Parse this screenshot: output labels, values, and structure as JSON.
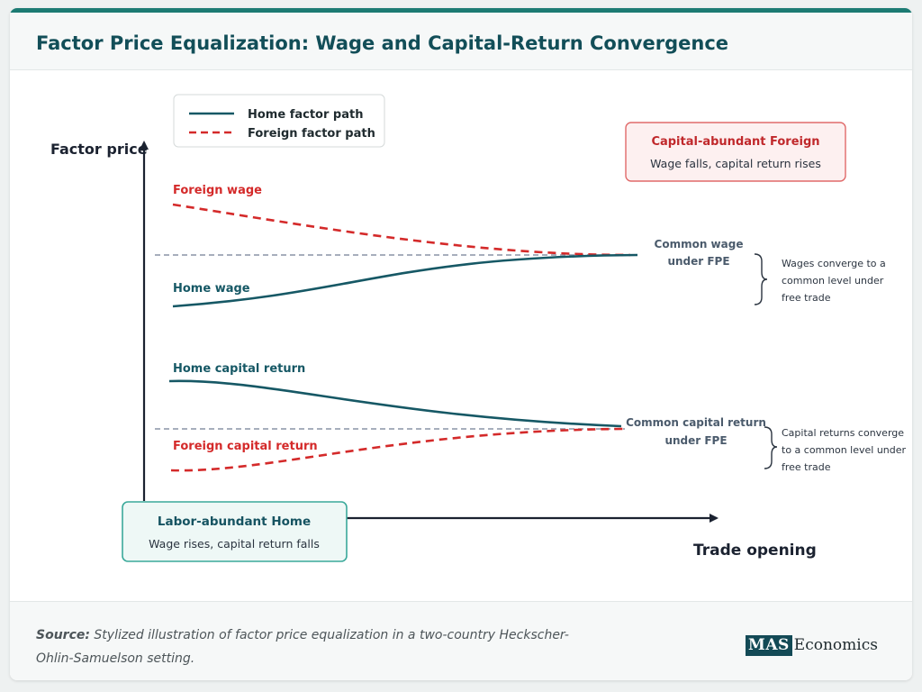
{
  "title": "Factor Price Equalization: Wage and Capital-Return Convergence",
  "legend": {
    "home": "Home factor path",
    "foreign": "Foreign factor path"
  },
  "axes": {
    "y_label": "Factor price",
    "x_label": "Trade opening"
  },
  "curves": {
    "foreign_wage": "Foreign wage",
    "home_wage": "Home wage",
    "home_capital": "Home capital return",
    "foreign_capital": "Foreign capital return"
  },
  "reference": {
    "wage_line1": "Common wage",
    "wage_line2": "under FPE",
    "capital_line1": "Common capital return",
    "capital_line2": "under FPE"
  },
  "notes": {
    "wages": [
      "Wages converge to a",
      "common level under",
      "free trade"
    ],
    "capital": [
      "Capital returns converge",
      "to a common level under",
      "free trade"
    ]
  },
  "boxes": {
    "foreign_title": "Capital-abundant Foreign",
    "foreign_desc": "Wage falls, capital return rises",
    "home_title": "Labor-abundant Home",
    "home_desc": "Wage rises, capital return falls"
  },
  "footer": {
    "source_label": "Source:",
    "source_text": " Stylized illustration of factor price equalization in a two-country Heckscher-Ohlin-Samuelson setting.",
    "logo_box": "MAS",
    "logo_text": "Economics"
  },
  "colors": {
    "home": "#165865",
    "foreign": "#d42a2a",
    "axis": "#1b2230",
    "reference": "#8a93a6"
  }
}
